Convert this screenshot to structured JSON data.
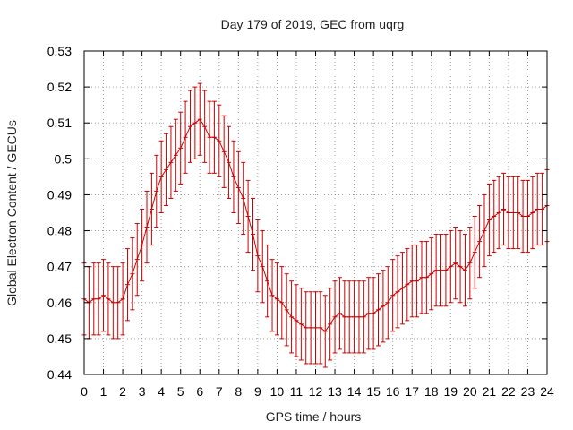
{
  "chart_data": {
    "type": "line",
    "title": "Day 179 of 2019, GEC from uqrg",
    "xlabel": "GPS time / hours",
    "ylabel": "Global Electron Content / GECUs",
    "xlim": [
      0,
      24
    ],
    "ylim": [
      0.44,
      0.53
    ],
    "grid": true,
    "x_ticks": [
      "0",
      "1",
      "2",
      "3",
      "4",
      "5",
      "6",
      "7",
      "8",
      "9",
      "10",
      "11",
      "12",
      "13",
      "14",
      "15",
      "16",
      "17",
      "18",
      "19",
      "20",
      "21",
      "22",
      "23",
      "24"
    ],
    "y_ticks": [
      "0.44",
      "0.45",
      "0.46",
      "0.47",
      "0.48",
      "0.49",
      "0.5",
      "0.51",
      "0.52",
      "0.53"
    ],
    "series": [
      {
        "name": "GEC",
        "color": "#cc0000",
        "error": 0.01,
        "x": [
          0,
          0.25,
          0.5,
          0.75,
          1,
          1.25,
          1.5,
          1.75,
          2,
          2.25,
          2.5,
          2.75,
          3,
          3.25,
          3.5,
          3.75,
          4,
          4.25,
          4.5,
          4.75,
          5,
          5.25,
          5.5,
          5.75,
          6,
          6.25,
          6.5,
          6.75,
          7,
          7.25,
          7.5,
          7.75,
          8,
          8.25,
          8.5,
          8.75,
          9,
          9.25,
          9.5,
          9.75,
          10,
          10.25,
          10.5,
          10.75,
          11,
          11.25,
          11.5,
          11.75,
          12,
          12.25,
          12.5,
          12.75,
          13,
          13.25,
          13.5,
          13.75,
          14,
          14.25,
          14.5,
          14.75,
          15,
          15.25,
          15.5,
          15.75,
          16,
          16.25,
          16.5,
          16.75,
          17,
          17.25,
          17.5,
          17.75,
          18,
          18.25,
          18.5,
          18.75,
          19,
          19.25,
          19.5,
          19.75,
          20,
          20.25,
          20.5,
          20.75,
          21,
          21.25,
          21.5,
          21.75,
          22,
          22.25,
          22.5,
          22.75,
          23,
          23.25,
          23.5,
          23.75,
          24
        ],
        "values": [
          0.461,
          0.46,
          0.461,
          0.461,
          0.462,
          0.461,
          0.46,
          0.46,
          0.461,
          0.465,
          0.468,
          0.472,
          0.476,
          0.481,
          0.486,
          0.491,
          0.495,
          0.497,
          0.499,
          0.501,
          0.503,
          0.506,
          0.509,
          0.51,
          0.511,
          0.509,
          0.506,
          0.506,
          0.505,
          0.502,
          0.499,
          0.495,
          0.492,
          0.489,
          0.484,
          0.479,
          0.473,
          0.47,
          0.466,
          0.462,
          0.461,
          0.46,
          0.458,
          0.456,
          0.455,
          0.454,
          0.453,
          0.453,
          0.453,
          0.453,
          0.452,
          0.454,
          0.456,
          0.457,
          0.456,
          0.456,
          0.456,
          0.456,
          0.456,
          0.457,
          0.457,
          0.458,
          0.459,
          0.46,
          0.462,
          0.463,
          0.464,
          0.465,
          0.466,
          0.466,
          0.467,
          0.467,
          0.468,
          0.469,
          0.469,
          0.469,
          0.47,
          0.471,
          0.47,
          0.469,
          0.471,
          0.474,
          0.477,
          0.48,
          0.483,
          0.484,
          0.485,
          0.486,
          0.485,
          0.485,
          0.485,
          0.484,
          0.484,
          0.485,
          0.486,
          0.486,
          0.487
        ]
      }
    ]
  }
}
